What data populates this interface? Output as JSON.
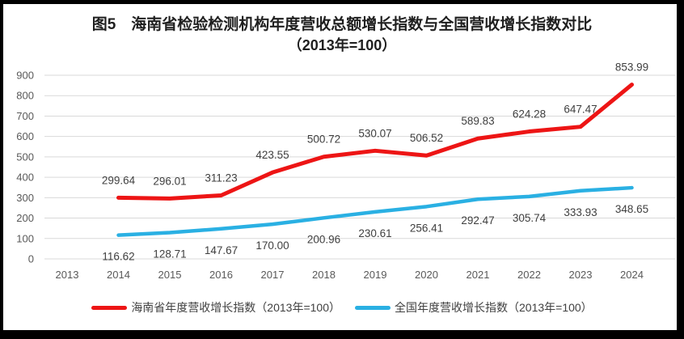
{
  "chart_data": {
    "type": "line",
    "title": "图5　海南省检验检测机构年度营收总额增长指数与全国营收增长指数对比",
    "subtitle": "（2013年=100）",
    "categories": [
      "2013",
      "2014",
      "2015",
      "2016",
      "2017",
      "2018",
      "2019",
      "2020",
      "2021",
      "2022",
      "2023",
      "2024"
    ],
    "series": [
      {
        "name": "海南省年度营收增长指数（2013年=100）",
        "color": "#ed1515",
        "label_position": "above",
        "values": [
          null,
          299.64,
          296.01,
          311.23,
          423.55,
          500.72,
          530.07,
          506.52,
          589.83,
          624.28,
          647.47,
          853.99
        ]
      },
      {
        "name": "全国年度营收增长指数（2013年=100）",
        "color": "#2ab0e3",
        "label_position": "below",
        "values": [
          null,
          116.62,
          128.71,
          147.67,
          170.0,
          200.96,
          230.61,
          256.41,
          292.47,
          305.74,
          333.93,
          348.65
        ]
      }
    ],
    "ylim": [
      0,
      900
    ],
    "ytick_step": 100,
    "grid": true,
    "legend_position": "bottom",
    "xlabel": "",
    "ylabel": ""
  }
}
